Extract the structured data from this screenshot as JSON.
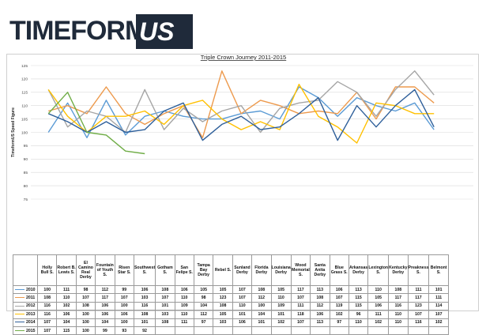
{
  "logo": {
    "brand": "TIMEFORM",
    "suffix": "US"
  },
  "chart_data": {
    "type": "line",
    "title": "Triple Crown Journey 2011-2015",
    "ylabel": "TimeformUS Speed Figure",
    "xlabel": "",
    "ylim": [
      75,
      125
    ],
    "yticks": [
      75,
      80,
      85,
      90,
      95,
      100,
      105,
      110,
      115,
      120,
      125
    ],
    "grid": true,
    "categories": [
      "Holly Bull S.",
      "Robert B. Lewis S.",
      "El Camino Real Derby",
      "Fountain of Youth S.",
      "Risen Star S.",
      "Southwest S.",
      "Gotham S.",
      "San Felipe S.",
      "Tampa Bay Derby",
      "Rebel S.",
      "Sunland Derby",
      "Florida Derby",
      "Louisiana Derby",
      "Wood Memorial S.",
      "Santa Anita Derby",
      "Blue Grass S.",
      "Arkansas Derby",
      "Lexington S.",
      "Kentucky Derby",
      "Preakness S.",
      "Belmont S."
    ],
    "series": [
      {
        "name": "2010",
        "color": "#5b9bd5",
        "values": [
          100,
          111,
          98,
          112,
          99,
          106,
          108,
          106,
          105,
          105,
          107,
          108,
          105,
          117,
          113,
          106,
          113,
          110,
          108,
          111,
          101
        ]
      },
      {
        "name": "2011",
        "color": "#ed9a4d",
        "values": [
          108,
          110,
          107,
          117,
          107,
          103,
          107,
          110,
          98,
          123,
          107,
          112,
          110,
          107,
          108,
          107,
          115,
          105,
          117,
          117,
          111
        ]
      },
      {
        "name": "2012",
        "color": "#a5a5a5",
        "values": [
          116,
          102,
          108,
          106,
          100,
          116,
          101,
          109,
          104,
          108,
          110,
          100,
          109,
          111,
          112,
          119,
          115,
          106,
          116,
          123,
          114
        ]
      },
      {
        "name": "2013",
        "color": "#ffc000",
        "values": [
          116,
          106,
          100,
          106,
          106,
          108,
          103,
          110,
          112,
          105,
          101,
          104,
          101,
          118,
          106,
          102,
          96,
          111,
          110,
          107,
          107
        ]
      },
      {
        "name": "2014",
        "color": "#2e5f9a",
        "values": [
          107,
          104,
          100,
          104,
          100,
          101,
          108,
          111,
          97,
          103,
          106,
          101,
          102,
          107,
          113,
          97,
          110,
          102,
          110,
          116,
          102
        ]
      },
      {
        "name": "2015",
        "color": "#70ad47",
        "values": [
          107,
          115,
          100,
          99,
          93,
          92,
          null,
          null,
          null,
          null,
          null,
          null,
          null,
          null,
          null,
          null,
          null,
          null,
          null,
          null,
          null
        ]
      }
    ]
  }
}
